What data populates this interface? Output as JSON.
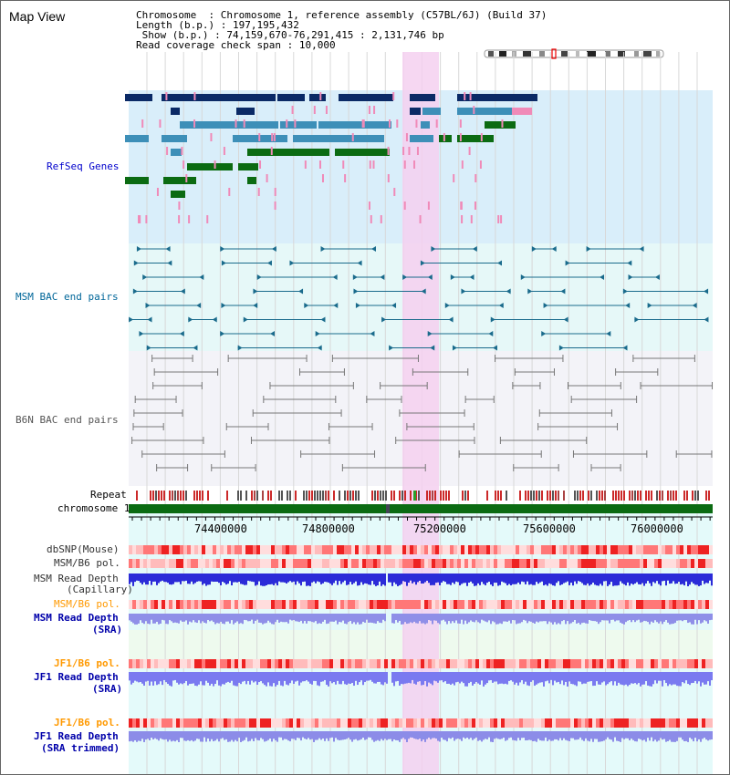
{
  "page": {
    "title": "Map View"
  },
  "info": {
    "chromosome_label": "Chromosome",
    "chromosome_value": "Chromosome 1, reference assembly (C57BL/6J) (Build 37)",
    "length_label": "Length (b.p.)",
    "length_value": "197,195,432",
    "show_label": "Show (b.p.)",
    "show_value": "74,159,670-76,291,415 : 2,131,746 bp",
    "coverage_label": "Read coverage check span",
    "coverage_value": "10,000"
  },
  "tracks": {
    "refseq": {
      "label": "RefSeq Genes",
      "color": "#0000cc"
    },
    "msm_bac": {
      "label": "MSM BAC end pairs",
      "color": "#006699"
    },
    "b6n_bac": {
      "label": "B6N BAC end pairs",
      "color": "#666666"
    },
    "repeat": {
      "label": "Repeat"
    },
    "chromosome": {
      "label": "chromosome 1"
    },
    "dbsnp": {
      "label": "dbSNP(Mouse)"
    },
    "msm_b6_pol": {
      "label": "MSM/B6 pol."
    },
    "msm_read_depth_cap": {
      "label_1": "MSM Read Depth",
      "label_2": "(Capillary)"
    },
    "msm_b6_pol_2": {
      "label": "MSM/B6 pol.",
      "color": "#ff9900"
    },
    "msm_read_depth_sra": {
      "label_1": "MSM Read Depth",
      "label_2": "(SRA)",
      "color": "#0000aa"
    },
    "jf1_b6_pol": {
      "label": "JF1/B6 pol.",
      "color": "#ff9900"
    },
    "jf1_read_depth_sra": {
      "label_1": "JF1 Read Depth",
      "label_2": "(SRA)",
      "color": "#0000aa"
    },
    "jf1_b6_pol_2": {
      "label": "JF1/B6 pol.",
      "color": "#ff9900"
    },
    "jf1_read_depth_trim": {
      "label_1": "JF1 Read Depth",
      "label_2": "(SRA trimmed)",
      "color": "#0000aa"
    }
  },
  "axis": {
    "ticks": [
      "74400000",
      "74800000",
      "75200000",
      "75600000",
      "76000000"
    ]
  },
  "colors": {
    "highlight": "#f5d0f0",
    "refseq_dark": "#0b2a66",
    "refseq_mid": "#3d8fb8",
    "refseq_green": "#0b6b12",
    "refseq_pink": "#f08ab8",
    "msm_line": "#1a6b8c",
    "b6n_line": "#777777"
  }
}
